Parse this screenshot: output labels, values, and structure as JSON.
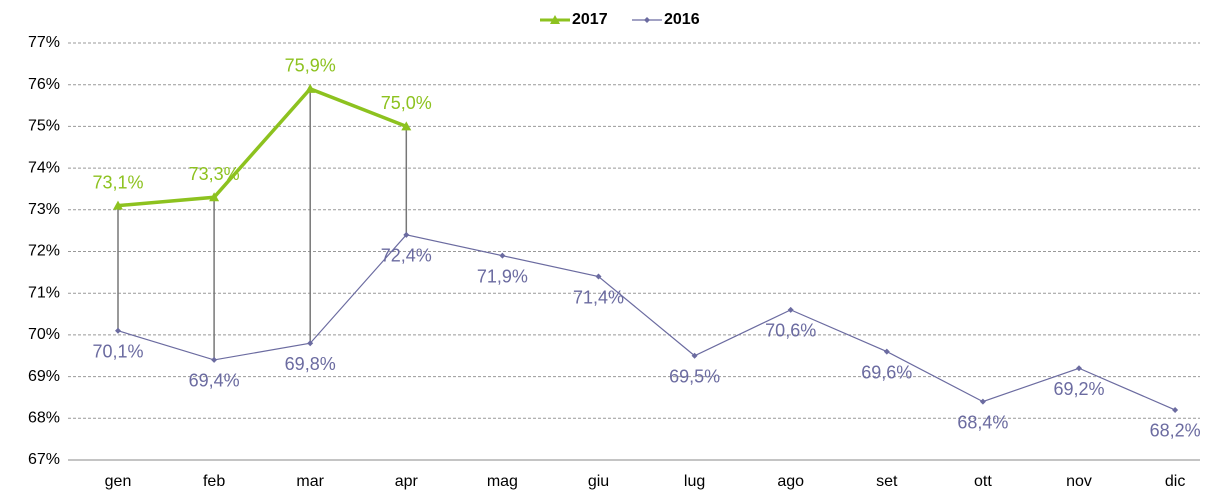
{
  "chart_data": {
    "type": "line",
    "categories": [
      "gen",
      "feb",
      "mar",
      "apr",
      "mag",
      "giu",
      "lug",
      "ago",
      "set",
      "ott",
      "nov",
      "dic"
    ],
    "series": [
      {
        "name": "2017",
        "color": "#8dc21f",
        "values": [
          73.1,
          73.3,
          75.9,
          75.0,
          null,
          null,
          null,
          null,
          null,
          null,
          null,
          null
        ],
        "value_labels": [
          "73,1%",
          "73,3%",
          "75,9%",
          "75,0%",
          null,
          null,
          null,
          null,
          null,
          null,
          null,
          null
        ]
      },
      {
        "name": "2016",
        "color": "#6b6ba0",
        "values": [
          70.1,
          69.4,
          69.8,
          72.4,
          71.9,
          71.4,
          69.5,
          70.6,
          69.6,
          68.4,
          69.2,
          68.2
        ],
        "value_labels": [
          "70,1%",
          "69,4%",
          "69,8%",
          "72,4%",
          "71,9%",
          "71,4%",
          "69,5%",
          "70,6%",
          "69,6%",
          "68,4%",
          "69,2%",
          "68,2%"
        ]
      }
    ],
    "ylim": [
      67,
      77
    ],
    "yticks": [
      {
        "value": 67,
        "label": "67%"
      },
      {
        "value": 68,
        "label": "68%"
      },
      {
        "value": 69,
        "label": "69%"
      },
      {
        "value": 70,
        "label": "70%"
      },
      {
        "value": 71,
        "label": "71%"
      },
      {
        "value": 72,
        "label": "72%"
      },
      {
        "value": 73,
        "label": "73%"
      },
      {
        "value": 74,
        "label": "74%"
      },
      {
        "value": 75,
        "label": "75%"
      },
      {
        "value": 76,
        "label": "76%"
      },
      {
        "value": 77,
        "label": "77%"
      }
    ],
    "grid": true,
    "legend": "top"
  }
}
